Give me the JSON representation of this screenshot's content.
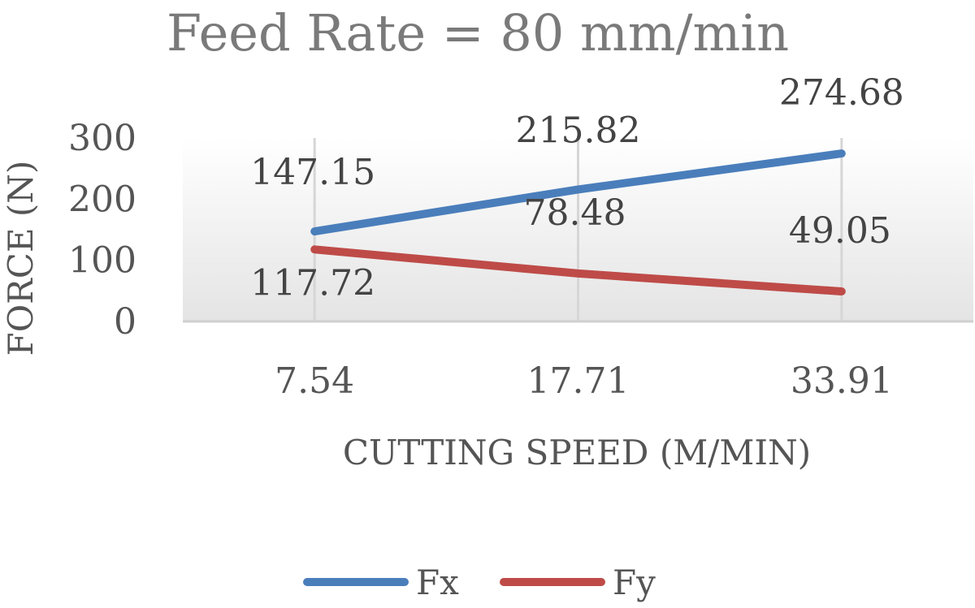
{
  "chart_data": {
    "type": "line",
    "title": "Feed Rate = 80 mm/min",
    "xlabel": "CUTTING SPEED (M/MIN)",
    "ylabel": "FORCE (N)",
    "categories": [
      "7.54",
      "17.71",
      "33.91"
    ],
    "ylim": [
      0,
      300
    ],
    "yticks": [
      "0",
      "100",
      "200",
      "300"
    ],
    "series": [
      {
        "name": "Fx",
        "values": [
          147.15,
          215.82,
          274.68
        ],
        "labels": [
          "147.15",
          "215.82",
          "274.68"
        ],
        "color": "#4a7ebb"
      },
      {
        "name": "Fy",
        "values": [
          117.72,
          78.48,
          49.05
        ],
        "labels": [
          "117.72",
          "78.48",
          "49.05"
        ],
        "color": "#be4b48"
      }
    ],
    "grid": "vertical",
    "legend": "bottom"
  }
}
